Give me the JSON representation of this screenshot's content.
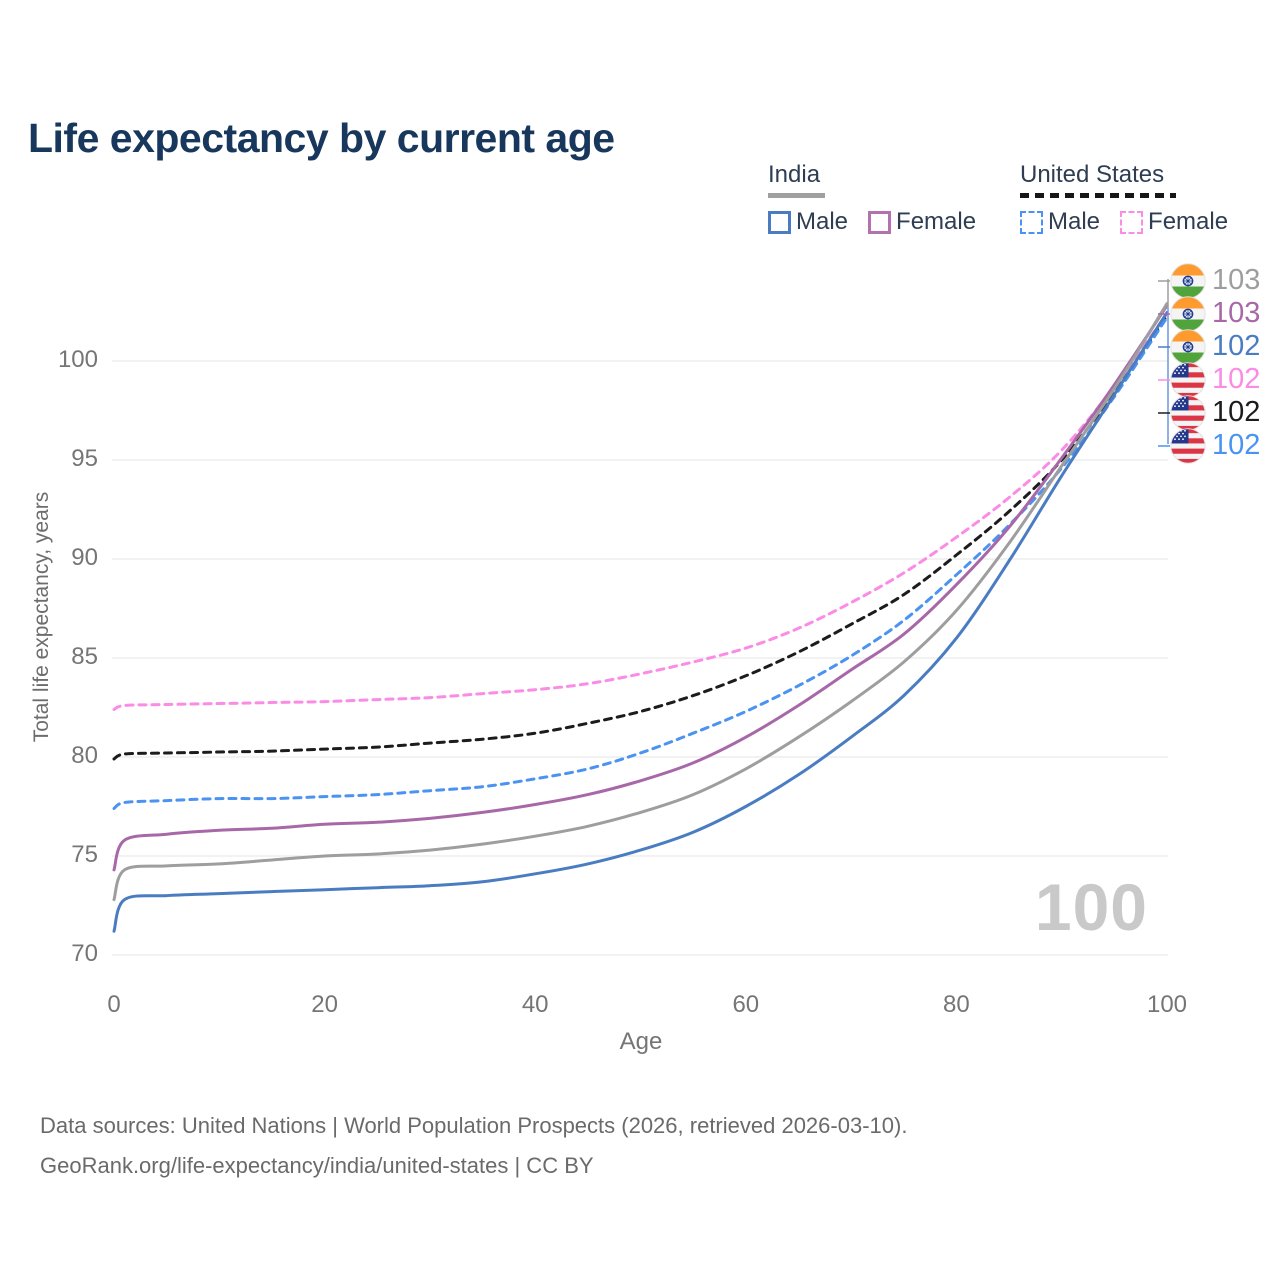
{
  "header": {
    "title": "Life expectancy by current age"
  },
  "legend": {
    "groups": [
      {
        "label": "India",
        "rule_style": "solid",
        "rule_color": "#a0a0a0",
        "items": [
          {
            "label": "Male",
            "color": "#4a7cc2",
            "dash": false
          },
          {
            "label": "Female",
            "color": "#b272ae",
            "dash": false
          }
        ]
      },
      {
        "label": "United States",
        "rule_style": "dashed",
        "rule_color": "#161616",
        "items": [
          {
            "label": "Male",
            "color": "#4b93f2",
            "dash": true
          },
          {
            "label": "Female",
            "color": "#fb8ce5",
            "dash": true
          }
        ]
      }
    ]
  },
  "chart_data": {
    "type": "line",
    "title": "Life expectancy by current age",
    "xlabel": "Age",
    "ylabel": "Total life expectancy, years",
    "xlim": [
      0,
      100
    ],
    "ylim": [
      70,
      103
    ],
    "x_ticks": [
      0,
      20,
      40,
      60,
      80,
      100
    ],
    "y_ticks": [
      70,
      75,
      80,
      85,
      90,
      95,
      100
    ],
    "grid": "horizontal",
    "legend_position": "top-right",
    "x": [
      0,
      1,
      5,
      10,
      15,
      20,
      25,
      30,
      35,
      40,
      45,
      50,
      55,
      60,
      65,
      70,
      75,
      80,
      85,
      90,
      95,
      100
    ],
    "series": [
      {
        "id": "us-female",
        "name": "United States Female",
        "color": "#fb8ce5",
        "dash": true,
        "values": [
          82.4,
          82.6,
          82.65,
          82.7,
          82.75,
          82.8,
          82.9,
          83.0,
          83.2,
          83.4,
          83.7,
          84.2,
          84.8,
          85.5,
          86.5,
          87.8,
          89.3,
          91.1,
          93.1,
          95.5,
          98.7,
          102.4
        ],
        "end_label": "102"
      },
      {
        "id": "us-total",
        "name": "United States",
        "color": "#1c1c1c",
        "dash": true,
        "values": [
          79.9,
          80.15,
          80.2,
          80.25,
          80.3,
          80.4,
          80.5,
          80.7,
          80.9,
          81.2,
          81.7,
          82.3,
          83.1,
          84.1,
          85.3,
          86.7,
          88.2,
          90.2,
          92.4,
          95.0,
          98.4,
          102.3
        ],
        "end_label": "102"
      },
      {
        "id": "us-male",
        "name": "United States Male",
        "color": "#4b93f2",
        "dash": true,
        "values": [
          77.4,
          77.7,
          77.8,
          77.9,
          77.9,
          78.0,
          78.1,
          78.3,
          78.5,
          78.9,
          79.4,
          80.2,
          81.2,
          82.3,
          83.6,
          85.1,
          86.9,
          89.2,
          91.7,
          94.6,
          98.2,
          102.2
        ],
        "end_label": "102"
      },
      {
        "id": "india-female",
        "name": "India Female",
        "color": "#a868a8",
        "dash": false,
        "values": [
          74.3,
          75.8,
          76.1,
          76.3,
          76.4,
          76.6,
          76.7,
          76.9,
          77.2,
          77.6,
          78.1,
          78.8,
          79.7,
          81.0,
          82.6,
          84.4,
          86.2,
          88.7,
          91.6,
          95.1,
          98.8,
          102.8
        ],
        "end_label": "103"
      },
      {
        "id": "india-total",
        "name": "India",
        "color": "#9e9e9e",
        "dash": false,
        "values": [
          72.8,
          74.3,
          74.5,
          74.6,
          74.8,
          75.0,
          75.1,
          75.3,
          75.6,
          76.0,
          76.5,
          77.2,
          78.1,
          79.4,
          81.0,
          82.8,
          84.8,
          87.4,
          90.8,
          94.7,
          98.6,
          102.9
        ],
        "end_label": "103"
      },
      {
        "id": "india-male",
        "name": "India Male",
        "color": "#4a7cc2",
        "dash": false,
        "values": [
          71.2,
          72.8,
          73.0,
          73.1,
          73.2,
          73.3,
          73.4,
          73.5,
          73.7,
          74.1,
          74.6,
          75.3,
          76.2,
          77.5,
          79.1,
          81.0,
          83.1,
          86.0,
          89.9,
          94.2,
          98.3,
          102.45
        ],
        "end_label": "102"
      }
    ],
    "end_labels": [
      {
        "flag": "india",
        "value": "103",
        "color": "#9e9e9e",
        "series": "india-total"
      },
      {
        "flag": "india",
        "value": "103",
        "color": "#a868a8",
        "series": "india-female"
      },
      {
        "flag": "india",
        "value": "102",
        "color": "#4a7cc2",
        "series": "india-male"
      },
      {
        "flag": "us",
        "value": "102",
        "color": "#fb8ce5",
        "series": "us-female"
      },
      {
        "flag": "us",
        "value": "102",
        "color": "#1c1c1c",
        "series": "us-total"
      },
      {
        "flag": "us",
        "value": "102",
        "color": "#4b93f2",
        "series": "us-male"
      }
    ],
    "hover_value": "100"
  },
  "watermark": "100",
  "footer": {
    "line1": "Data sources: United Nations | World Population Prospects (2026, retrieved 2026-03-10).",
    "line2": "GeoRank.org/life-expectancy/india/united-states | CC BY"
  },
  "colors": {
    "title": "#17375c",
    "axis_text": "#757575",
    "muted_text": "#6a6a6a",
    "grid": "#e9e9e9",
    "watermark": "#c9c9c9"
  }
}
